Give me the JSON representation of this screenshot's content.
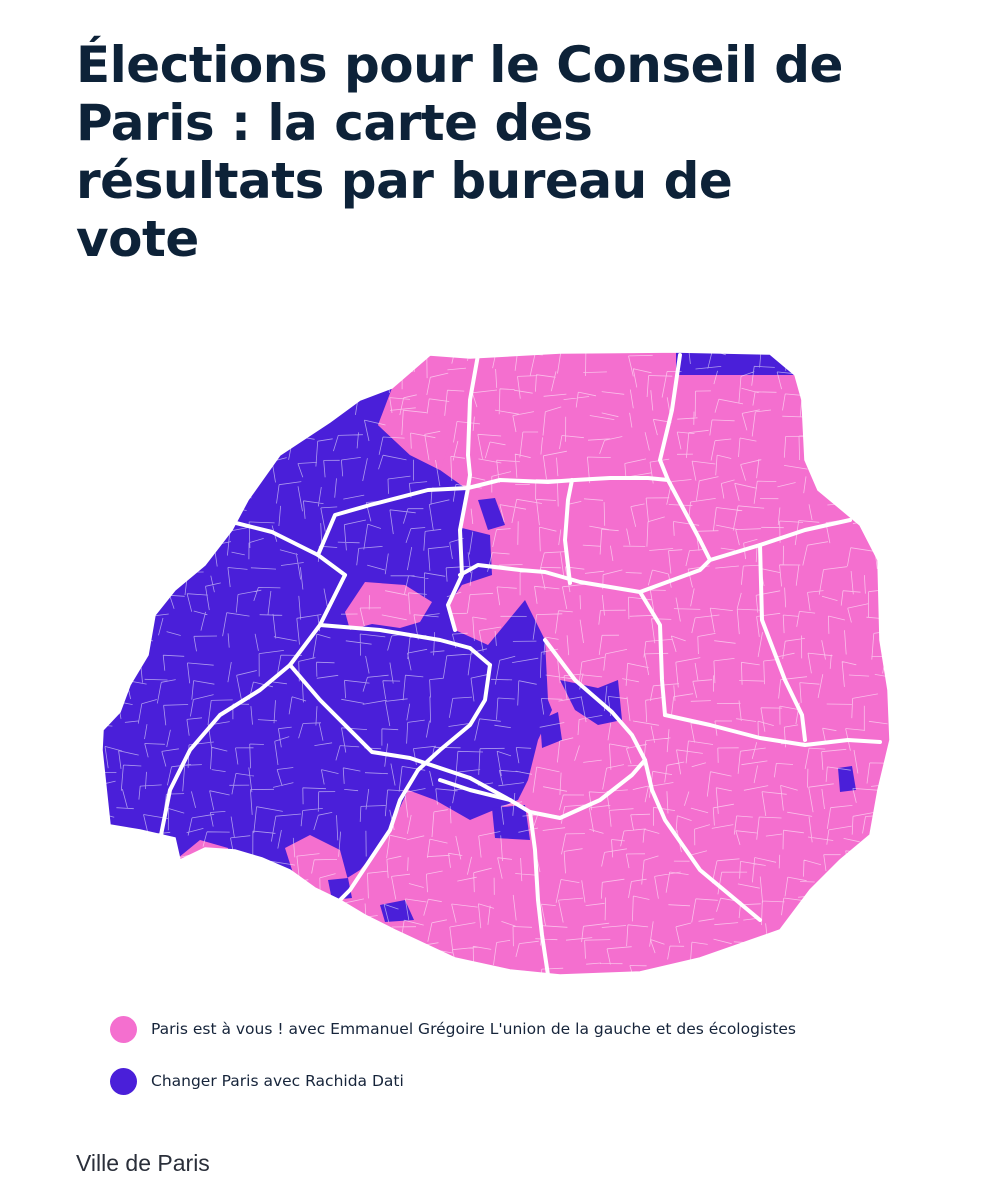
{
  "title": "Élections pour le Conseil de Paris : la carte des résultats par bureau de vote",
  "map": {
    "region": "Paris",
    "colors": {
      "gregoire": "#f46fcf",
      "dati": "#4a1fd9",
      "borders": "#ffffff"
    }
  },
  "legend": {
    "items": [
      {
        "label": "Paris est à vous ! avec Emmanuel Grégoire L'union de la gauche et des écologistes",
        "color": "#f46fcf"
      },
      {
        "label": "Changer Paris avec Rachida Dati",
        "color": "#4a1fd9"
      }
    ]
  },
  "source": "Ville de Paris"
}
